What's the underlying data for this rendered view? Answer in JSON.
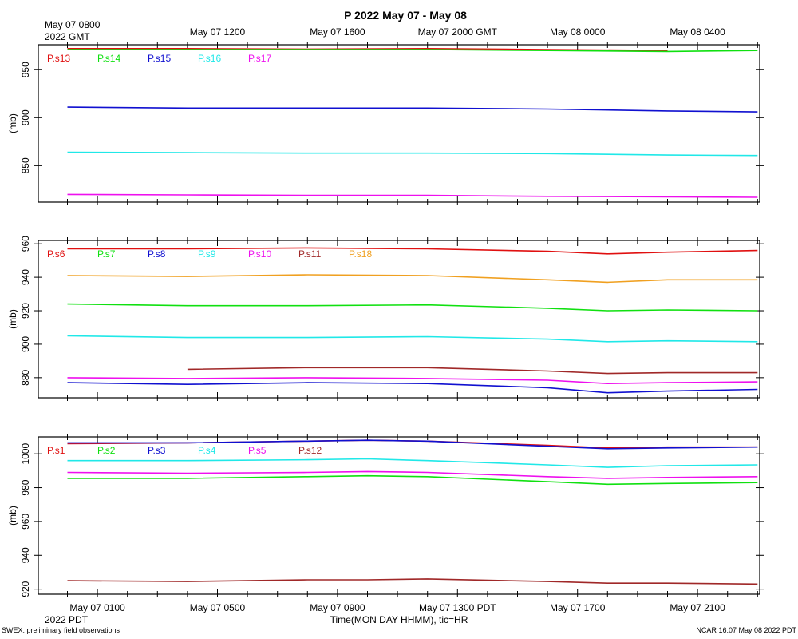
{
  "title": "P 2022 May 07 - May 08",
  "top_time_labels": [
    "May 07 1200",
    "May 07 1600",
    "May 07 2000 GMT",
    "May 08 0000",
    "May 08 0400"
  ],
  "top_start_label": [
    "May 07 0800",
    "2022 GMT"
  ],
  "bottom_time_labels": [
    "May 07 0100",
    "May 07 0500",
    "May 07 0900",
    "May 07 1300 PDT",
    "May 07 1700",
    "May 07 2100"
  ],
  "bottom_start_year": "2022 PDT",
  "x_axis_title": "Time(MON DAY HHMM), tic=HR",
  "footer_left": "SWEX: preliminary field observations",
  "footer_right": "NCAR 16:07 May 08 2022 PDT",
  "chart_data": [
    {
      "type": "line",
      "ylabel": "(mb)",
      "ylim": [
        812,
        976
      ],
      "yticks": [
        850,
        900,
        950
      ],
      "x_hours_pdt": [
        0,
        4,
        8,
        12,
        16,
        20,
        23
      ],
      "series": [
        {
          "name": "P.s13",
          "color": "#e01010",
          "values": [
            972,
            972,
            971.5,
            972,
            971,
            970,
            null
          ]
        },
        {
          "name": "P.s14",
          "color": "#10e010",
          "values": [
            971,
            971,
            971,
            971,
            970,
            969,
            970
          ]
        },
        {
          "name": "P.s15",
          "color": "#1010d0",
          "values": [
            911,
            910,
            910,
            910,
            909,
            907,
            906
          ]
        },
        {
          "name": "P.s16",
          "color": "#20e8e8",
          "values": [
            864,
            863.5,
            863,
            863,
            862.5,
            861,
            860.5
          ]
        },
        {
          "name": "P.s17",
          "color": "#ee10ee",
          "values": [
            820,
            819.5,
            819,
            819,
            818,
            817.5,
            817
          ]
        }
      ]
    },
    {
      "type": "line",
      "ylabel": "(mb)",
      "ylim": [
        868,
        962
      ],
      "yticks": [
        880,
        900,
        920,
        940,
        960
      ],
      "x_hours_pdt": [
        0,
        4,
        8,
        12,
        16,
        18,
        20,
        23
      ],
      "series": [
        {
          "name": "P.s6",
          "color": "#e01010",
          "values": [
            957,
            957,
            957.5,
            957,
            955.5,
            954,
            955,
            956
          ]
        },
        {
          "name": "P.s7",
          "color": "#10e010",
          "values": [
            924,
            923,
            923,
            923.5,
            921.5,
            920,
            920.5,
            920
          ]
        },
        {
          "name": "P.s8",
          "color": "#1010d0",
          "values": [
            877,
            876,
            877,
            876.5,
            874,
            871,
            872,
            873
          ]
        },
        {
          "name": "P.s9",
          "color": "#20e8e8",
          "values": [
            905,
            904,
            904,
            904.5,
            903,
            901.5,
            902,
            901.5
          ]
        },
        {
          "name": "P.s10",
          "color": "#ee10ee",
          "values": [
            880,
            879.5,
            880,
            879.5,
            878.5,
            876.5,
            877,
            877.5
          ]
        },
        {
          "name": "P.s11",
          "color": "#a02828",
          "values": [
            null,
            885,
            886,
            886,
            884,
            882.5,
            883,
            883
          ]
        },
        {
          "name": "P.s18",
          "color": "#f0a020",
          "values": [
            941,
            940.5,
            941.5,
            941,
            938.5,
            937,
            938.5,
            938.5
          ]
        }
      ]
    },
    {
      "type": "line",
      "ylabel": "(mb)",
      "ylim": [
        917,
        1010
      ],
      "yticks": [
        920,
        940,
        960,
        980,
        1000
      ],
      "x_hours_pdt": [
        0,
        4,
        8,
        10,
        12,
        16,
        18,
        20,
        23
      ],
      "series": [
        {
          "name": "P.s1",
          "color": "#e01010",
          "values": [
            1006,
            1006.5,
            1007.5,
            1008,
            1007.5,
            1005,
            1003.5,
            1004,
            1004
          ]
        },
        {
          "name": "P.s2",
          "color": "#10e010",
          "values": [
            985.5,
            985.5,
            986.5,
            987,
            986.5,
            983.5,
            982,
            982.5,
            983
          ]
        },
        {
          "name": "P.s3",
          "color": "#1010d0",
          "values": [
            1006.5,
            1006.5,
            1007.5,
            1008,
            1007.5,
            1004.5,
            1003,
            1003.5,
            1004
          ]
        },
        {
          "name": "P.s4",
          "color": "#20e8e8",
          "values": [
            996,
            996,
            996.5,
            997,
            996,
            993.5,
            992,
            993,
            993.5
          ]
        },
        {
          "name": "P.s5",
          "color": "#ee10ee",
          "values": [
            989,
            988.5,
            989,
            989.5,
            989,
            986.5,
            985.5,
            986,
            986.5
          ]
        },
        {
          "name": "P.s12",
          "color": "#a02828",
          "values": [
            925,
            924.5,
            925.5,
            925.5,
            926,
            924.5,
            923.5,
            923.5,
            923
          ]
        }
      ]
    }
  ]
}
